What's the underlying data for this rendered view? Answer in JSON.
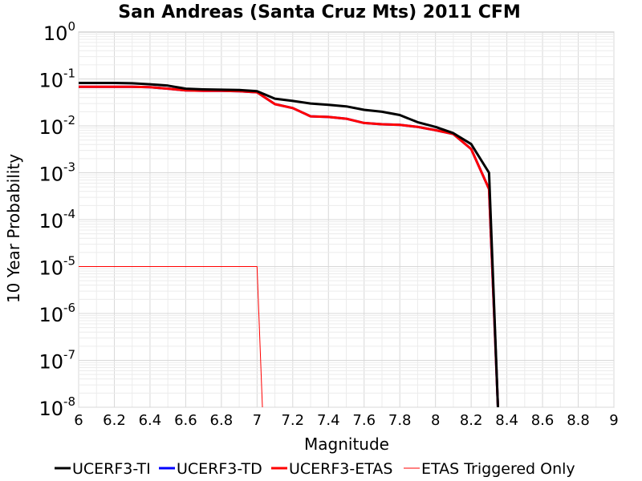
{
  "chart_data": {
    "type": "line",
    "title": "San Andreas (Santa Cruz Mts) 2011 CFM",
    "xlabel": "Magnitude",
    "ylabel": "10 Year Probability",
    "xlim": [
      6,
      9
    ],
    "ylim": [
      1e-08,
      1
    ],
    "yscale": "log",
    "grid": true,
    "legend_position": "bottom",
    "x_ticks": [
      "6",
      "6.2",
      "6.4",
      "6.6",
      "6.8",
      "7",
      "7.2",
      "7.4",
      "7.6",
      "7.8",
      "8",
      "8.2",
      "8.4",
      "8.6",
      "8.8",
      "9"
    ],
    "y_ticks": [
      {
        "base": "10",
        "exp": "0"
      },
      {
        "base": "10",
        "exp": "-1"
      },
      {
        "base": "10",
        "exp": "-2"
      },
      {
        "base": "10",
        "exp": "-3"
      },
      {
        "base": "10",
        "exp": "-4"
      },
      {
        "base": "10",
        "exp": "-5"
      },
      {
        "base": "10",
        "exp": "-6"
      },
      {
        "base": "10",
        "exp": "-7"
      },
      {
        "base": "10",
        "exp": "-8"
      }
    ],
    "series": [
      {
        "name": "UCERF3-TI",
        "color": "#000000",
        "line_width": 3,
        "x": [
          6.0,
          6.1,
          6.2,
          6.3,
          6.4,
          6.5,
          6.6,
          6.7,
          6.8,
          6.9,
          7.0,
          7.1,
          7.2,
          7.3,
          7.4,
          7.5,
          7.6,
          7.7,
          7.8,
          7.9,
          8.0,
          8.1,
          8.2,
          8.3,
          8.35
        ],
        "y": [
          0.082,
          0.082,
          0.082,
          0.081,
          0.077,
          0.072,
          0.062,
          0.06,
          0.059,
          0.058,
          0.055,
          0.038,
          0.034,
          0.03,
          0.028,
          0.026,
          0.022,
          0.02,
          0.017,
          0.012,
          0.0095,
          0.007,
          0.0041,
          0.001,
          1e-08
        ]
      },
      {
        "name": "UCERF3-TD",
        "color": "#0000ff",
        "line_width": 3,
        "x": [
          6.0,
          6.1,
          6.2,
          6.3,
          6.4,
          6.5,
          6.6,
          6.7,
          6.8,
          6.9,
          7.0,
          7.1,
          7.2,
          7.3,
          7.4,
          7.5,
          7.6,
          7.7,
          7.8,
          7.9,
          8.0,
          8.1,
          8.2,
          8.3,
          8.35
        ],
        "y": [
          0.068,
          0.068,
          0.068,
          0.068,
          0.067,
          0.062,
          0.057,
          0.056,
          0.056,
          0.055,
          0.052,
          0.029,
          0.024,
          0.016,
          0.0155,
          0.0142,
          0.0115,
          0.0108,
          0.0105,
          0.0095,
          0.0081,
          0.0067,
          0.0032,
          0.00045,
          1e-08
        ]
      },
      {
        "name": "UCERF3-ETAS",
        "color": "#ff0000",
        "line_width": 3,
        "x": [
          6.0,
          6.1,
          6.2,
          6.3,
          6.4,
          6.5,
          6.6,
          6.7,
          6.8,
          6.9,
          7.0,
          7.1,
          7.2,
          7.3,
          7.4,
          7.5,
          7.6,
          7.7,
          7.8,
          7.9,
          8.0,
          8.1,
          8.2,
          8.3,
          8.35
        ],
        "y": [
          0.068,
          0.068,
          0.068,
          0.068,
          0.067,
          0.062,
          0.057,
          0.056,
          0.056,
          0.055,
          0.052,
          0.029,
          0.024,
          0.016,
          0.0155,
          0.0142,
          0.0115,
          0.0108,
          0.0105,
          0.0095,
          0.0081,
          0.0067,
          0.0032,
          0.00045,
          1e-08
        ]
      },
      {
        "name": "ETAS Triggered Only",
        "color": "#ff0000",
        "line_width": 1,
        "x": [
          6.0,
          7.0,
          7.03
        ],
        "y": [
          1e-05,
          1e-05,
          1e-08
        ]
      }
    ]
  }
}
